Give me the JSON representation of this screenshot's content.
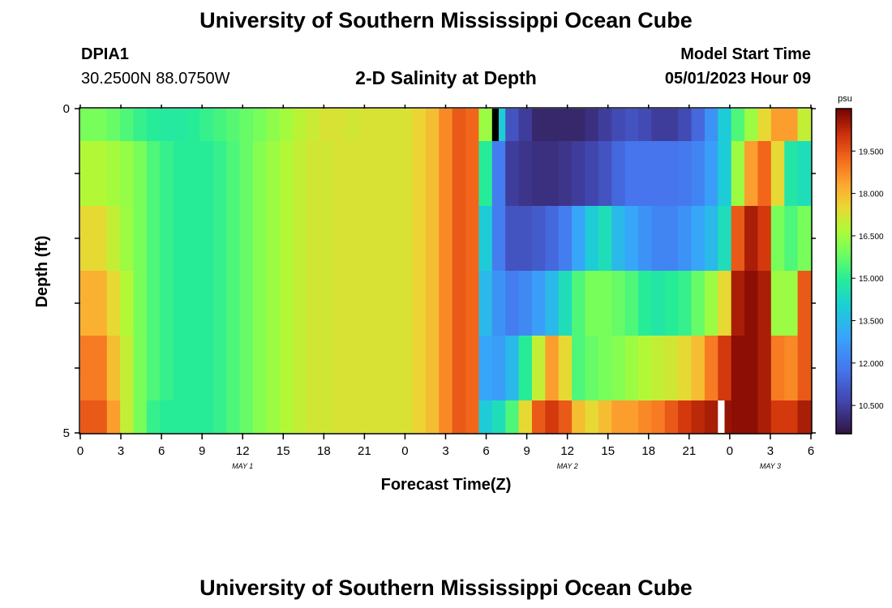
{
  "header": {
    "title": "University of Southern Mississippi Ocean Cube",
    "station_id": "DPIA1",
    "coordinates": "30.2500N  88.0750W",
    "subtitle": "2-D Salinity at Depth",
    "model_start_label": "Model Start Time",
    "model_start_value": "05/01/2023 Hour 09"
  },
  "footer": {
    "title": "University of Southern Mississippi Ocean Cube"
  },
  "chart_data": {
    "type": "heatmap",
    "title": "2-D Salinity at Depth",
    "xlabel": "Forecast Time(Z)",
    "ylabel": "Depth (ft)",
    "x_tick_labels": [
      "0",
      "3",
      "6",
      "9",
      "12",
      "15",
      "18",
      "21",
      "0",
      "3",
      "6",
      "9",
      "12",
      "15",
      "18",
      "21",
      "0",
      "3",
      "6"
    ],
    "date_labels": [
      {
        "label": "MAY 1",
        "tick_index": 4
      },
      {
        "label": "MAY 2",
        "tick_index": 12
      },
      {
        "label": "MAY 3",
        "tick_index": 17
      }
    ],
    "y_tick_labels": [
      "0",
      "5"
    ],
    "y_range": [
      0,
      5
    ],
    "colorbar": {
      "unit": "psu",
      "min": 9.5,
      "max": 21,
      "ticks": [
        "19.500",
        "18.000",
        "16.500",
        "15.000",
        "13.500",
        "12.000",
        "10.500"
      ]
    },
    "time_hours": [
      0,
      1,
      2,
      3,
      4,
      5,
      6,
      7,
      8,
      9,
      10,
      11,
      12,
      13,
      14,
      15,
      16,
      17,
      18,
      19,
      20,
      21,
      22,
      23,
      24,
      25,
      26,
      27,
      28,
      29,
      30,
      31,
      32,
      33,
      34,
      35,
      36,
      37,
      38,
      39,
      40,
      41,
      42,
      43,
      44,
      45,
      46,
      47,
      48,
      49,
      50,
      51,
      52,
      53,
      54
    ],
    "depth_layers": [
      {
        "depth": "0-0.5",
        "values": [
          16.0,
          16.0,
          15.8,
          15.5,
          15.2,
          15.0,
          14.9,
          14.9,
          15.0,
          15.2,
          15.4,
          15.6,
          15.8,
          16.0,
          16.3,
          16.6,
          16.9,
          17.1,
          17.3,
          17.3,
          17.2,
          17.3,
          17.3,
          17.3,
          17.3,
          17.6,
          18.0,
          18.8,
          19.5,
          19.3,
          16.5,
          14.0,
          11.0,
          10.5,
          10.0,
          10.0,
          10.0,
          10.0,
          10.2,
          10.5,
          10.8,
          11.0,
          10.8,
          10.5,
          10.5,
          10.8,
          11.5,
          12.5,
          14.0,
          15.5,
          16.5,
          17.5,
          18.5,
          18.5,
          17.0
        ]
      },
      {
        "depth": "0.5-1.5",
        "values": [
          16.8,
          16.8,
          16.6,
          16.4,
          16.0,
          15.5,
          15.2,
          15.0,
          15.0,
          15.0,
          15.2,
          15.5,
          15.8,
          16.2,
          16.5,
          16.8,
          17.0,
          17.2,
          17.2,
          17.3,
          17.3,
          17.3,
          17.3,
          17.3,
          17.3,
          17.6,
          18.0,
          18.8,
          19.5,
          19.3,
          15.0,
          12.0,
          10.5,
          10.3,
          10.2,
          10.2,
          10.3,
          10.5,
          10.7,
          11.0,
          11.5,
          11.8,
          11.8,
          11.8,
          11.8,
          11.9,
          12.2,
          12.8,
          14.0,
          16.5,
          18.5,
          19.3,
          17.5,
          14.8,
          14.5
        ]
      },
      {
        "depth": "1.5-2.5",
        "values": [
          17.5,
          17.5,
          17.0,
          16.5,
          16.0,
          15.5,
          15.2,
          15.0,
          15.0,
          15.0,
          15.2,
          15.5,
          15.8,
          16.2,
          16.5,
          16.8,
          17.0,
          17.2,
          17.2,
          17.3,
          17.3,
          17.3,
          17.3,
          17.3,
          17.3,
          17.6,
          18.0,
          18.8,
          19.5,
          19.3,
          14.0,
          12.0,
          11.0,
          11.0,
          11.2,
          11.5,
          12.0,
          13.0,
          14.0,
          14.5,
          13.5,
          13.0,
          12.5,
          12.2,
          12.2,
          12.5,
          13.0,
          13.5,
          14.5,
          19.5,
          20.5,
          20.0,
          16.0,
          15.5,
          16.0
        ]
      },
      {
        "depth": "2.5-3.5",
        "values": [
          18.2,
          18.2,
          17.5,
          16.8,
          16.0,
          15.5,
          15.2,
          15.0,
          15.0,
          15.0,
          15.2,
          15.5,
          15.8,
          16.2,
          16.5,
          16.8,
          17.0,
          17.2,
          17.2,
          17.3,
          17.3,
          17.3,
          17.3,
          17.3,
          17.3,
          17.6,
          18.0,
          18.8,
          19.5,
          19.3,
          13.5,
          12.5,
          12.0,
          12.3,
          12.8,
          13.5,
          14.5,
          15.5,
          16.0,
          16.0,
          15.8,
          15.5,
          15.0,
          14.8,
          15.0,
          15.2,
          15.8,
          16.5,
          17.5,
          20.5,
          20.8,
          20.5,
          16.5,
          16.5,
          19.5
        ]
      },
      {
        "depth": "3.5-4.5",
        "values": [
          19.0,
          19.0,
          18.0,
          17.0,
          16.0,
          15.5,
          15.2,
          15.0,
          15.0,
          15.0,
          15.2,
          15.5,
          15.8,
          16.2,
          16.5,
          16.8,
          17.0,
          17.2,
          17.2,
          17.3,
          17.3,
          17.3,
          17.3,
          17.3,
          17.3,
          17.6,
          18.0,
          18.8,
          19.5,
          19.3,
          13.0,
          12.8,
          13.5,
          15.0,
          17.0,
          18.5,
          17.5,
          15.5,
          15.8,
          16.0,
          16.2,
          16.5,
          16.8,
          17.0,
          17.2,
          17.5,
          18.0,
          19.0,
          20.0,
          20.8,
          20.8,
          20.5,
          19.0,
          18.8,
          19.5
        ]
      },
      {
        "depth": "4.5-5",
        "values": [
          19.5,
          19.5,
          18.5,
          17.0,
          16.0,
          15.2,
          15.0,
          15.0,
          15.0,
          15.0,
          15.2,
          15.5,
          15.8,
          16.2,
          16.5,
          16.8,
          17.0,
          17.2,
          17.2,
          17.3,
          17.3,
          17.3,
          17.3,
          17.3,
          17.3,
          17.6,
          18.0,
          18.8,
          19.5,
          19.3,
          14.0,
          14.5,
          15.5,
          17.5,
          19.5,
          20.0,
          19.5,
          18.0,
          17.5,
          18.0,
          18.5,
          18.5,
          18.8,
          19.0,
          19.5,
          20.0,
          20.3,
          20.5,
          20.7,
          20.8,
          20.8,
          20.5,
          20.0,
          20.0,
          20.5
        ]
      }
    ],
    "missing_marks": [
      {
        "color": "#000000",
        "time_hour": 31,
        "depth_layer": 0
      },
      {
        "color": "#ffffff",
        "time_hour": 48,
        "depth_layer": 5
      }
    ]
  }
}
